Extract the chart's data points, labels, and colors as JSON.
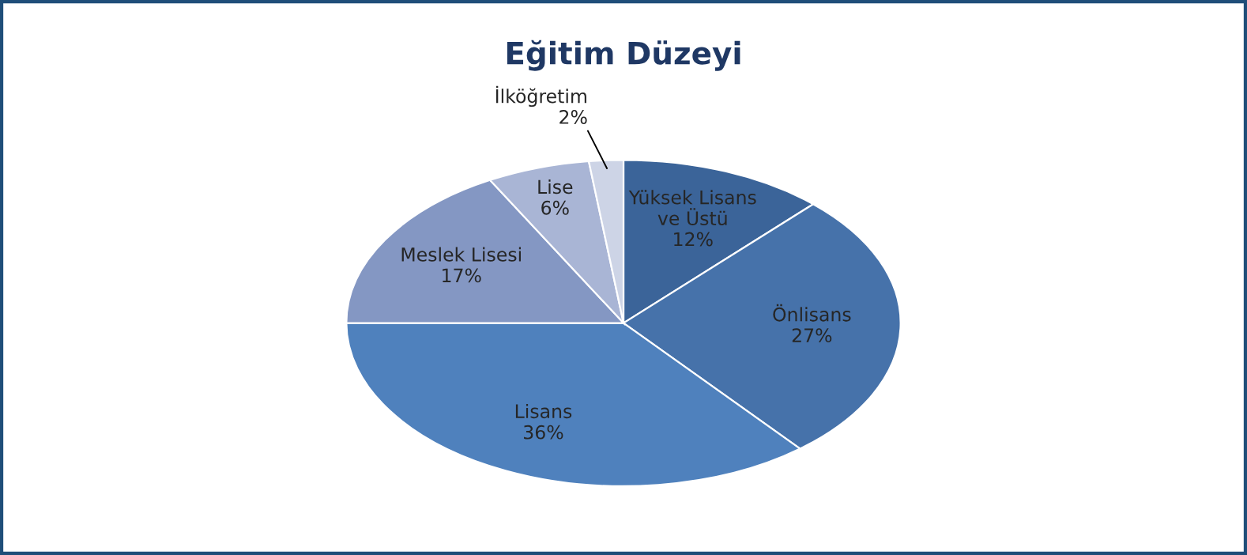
{
  "chart_data": {
    "type": "pie",
    "title": "Eğitim Düzeyi",
    "categories": [
      "Yüksek Lisans\nve Üstü",
      "Önlisans",
      "Lisans",
      "Meslek Lisesi",
      "Lise",
      "İlköğretim"
    ],
    "values": [
      12,
      27,
      36,
      17,
      6,
      2
    ],
    "colors": [
      "#3b6499",
      "#4672aa",
      "#4f81bd",
      "#8497c3",
      "#a9b5d5",
      "#cdd4e6"
    ],
    "value_labels": [
      "12%",
      "27%",
      "36%",
      "17%",
      "6%",
      "2%"
    ],
    "legend": false
  }
}
